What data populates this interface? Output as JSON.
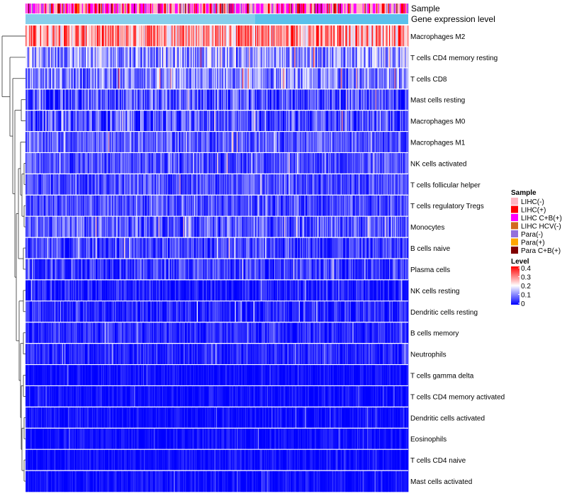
{
  "chart_data": {
    "type": "heatmap",
    "title": "",
    "annotation_tracks": [
      "Sample",
      "Gene expression level"
    ],
    "rows": [
      {
        "name": "Macrophages M2",
        "mean": 0.28,
        "spread": 0.12
      },
      {
        "name": "T cells CD4 memory resting",
        "mean": 0.12,
        "spread": 0.1
      },
      {
        "name": "T cells CD8",
        "mean": 0.1,
        "spread": 0.09
      },
      {
        "name": "Mast cells resting",
        "mean": 0.06,
        "spread": 0.08
      },
      {
        "name": "Macrophages M0",
        "mean": 0.06,
        "spread": 0.08
      },
      {
        "name": "Macrophages M1",
        "mean": 0.07,
        "spread": 0.06
      },
      {
        "name": "NK cells activated",
        "mean": 0.06,
        "spread": 0.06
      },
      {
        "name": "T cells follicular helper",
        "mean": 0.06,
        "spread": 0.06
      },
      {
        "name": "T cells regulatory  Tregs",
        "mean": 0.06,
        "spread": 0.06
      },
      {
        "name": "Monocytes",
        "mean": 0.07,
        "spread": 0.07
      },
      {
        "name": "B cells naive",
        "mean": 0.05,
        "spread": 0.06
      },
      {
        "name": "Plasma cells",
        "mean": 0.05,
        "spread": 0.06
      },
      {
        "name": "NK cells resting",
        "mean": 0.02,
        "spread": 0.05
      },
      {
        "name": "Dendritic cells resting",
        "mean": 0.03,
        "spread": 0.05
      },
      {
        "name": "B cells memory",
        "mean": 0.03,
        "spread": 0.04
      },
      {
        "name": "Neutrophils",
        "mean": 0.03,
        "spread": 0.04
      },
      {
        "name": "T cells gamma delta",
        "mean": 0.01,
        "spread": 0.03
      },
      {
        "name": "T cells CD4 memory activated",
        "mean": 0.01,
        "spread": 0.03
      },
      {
        "name": "Dendritic cells activated",
        "mean": 0.01,
        "spread": 0.03
      },
      {
        "name": "Eosinophils",
        "mean": 0.01,
        "spread": 0.03
      },
      {
        "name": "T cells CD4 naive",
        "mean": 0.01,
        "spread": 0.03
      },
      {
        "name": "Mast cells activated",
        "mean": 0.01,
        "spread": 0.03
      }
    ],
    "n_columns": 420,
    "legend_sample": {
      "title": "Sample",
      "items": [
        {
          "label": "LIHC(-)",
          "color": "#FFB6C1"
        },
        {
          "label": "LIHC(+)",
          "color": "#FF0000"
        },
        {
          "label": "LIHC C+B(+)",
          "color": "#FF00FF"
        },
        {
          "label": "LIHC HCV(-)",
          "color": "#D2691E"
        },
        {
          "label": "Para(-)",
          "color": "#9370DB"
        },
        {
          "label": "Para(+)",
          "color": "#FFA500"
        },
        {
          "label": "Para C+B(+)",
          "color": "#800000"
        }
      ]
    },
    "legend_level": {
      "title": "Level",
      "range": [
        0,
        0.4
      ],
      "ticks": [
        "0.4",
        "0.3",
        "0.2",
        "0.1",
        "0"
      ],
      "colors": {
        "low": "#0000FF",
        "mid": "#FFFFFF",
        "high": "#FF0000"
      }
    },
    "expression_bar_color": "#5BC0EB"
  }
}
